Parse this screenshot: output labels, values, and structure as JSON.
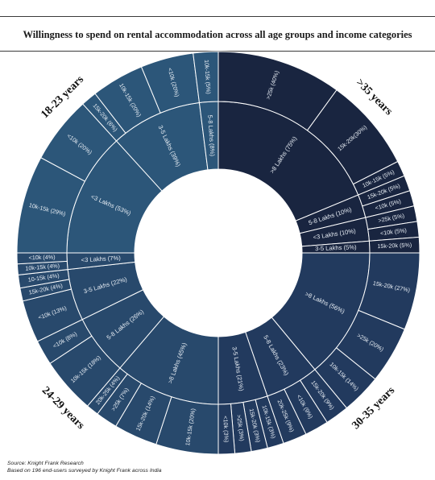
{
  "title": "Willingness to spend on rental accommodation across all age groups and income categories",
  "footer": {
    "source": "Source: Knight Frank Research",
    "note": "Based on 196 end-users surveyed by Knight Frank across India"
  },
  "colors": {
    "18-23": "#2c5679",
    "24-29": "#28496c",
    "30-35": "#223a5e",
    ">35": "#192540",
    "stroke": "#ffffff",
    "text": "#e6ecf3"
  },
  "chart_data": {
    "type": "sunburst",
    "title": "Willingness to spend on rental accommodation across all age groups and income categories",
    "groups": [
      {
        "name": ">35 years",
        "key": ">35",
        "budgets": [
          {
            "label": ">8 Lakhs (75%)",
            "value": 75,
            "income": [
              {
                "label": ">25k (40%)",
                "value": 40
              },
              {
                "label": "15k-20k(30%)",
                "value": 30
              },
              {
                "label": "10k-15k (5%)",
                "value": 5
              }
            ]
          },
          {
            "label": "5-8 Lakhs (10%)",
            "value": 10,
            "income": [
              {
                "label": "15k-20k (5%)",
                "value": 5
              },
              {
                "label": "<10k (5%)",
                "value": 5
              }
            ]
          },
          {
            "label": "<3 Lakhs (10%)",
            "value": 10,
            "income": [
              {
                "label": ">25k (5%)",
                "value": 5
              },
              {
                "label": "<10k (5%)",
                "value": 5
              }
            ]
          },
          {
            "label": "3-5 Lakhs (5%)",
            "value": 5,
            "income": [
              {
                "label": "15k-20k (5%)",
                "value": 5
              }
            ]
          }
        ]
      },
      {
        "name": "30-35 years",
        "key": "30-35",
        "budgets": [
          {
            "label": ">8 Lakhs (56%)",
            "value": 56,
            "income": [
              {
                "label": "15k-20k (27%)",
                "value": 27
              },
              {
                "label": ">25k (20%)",
                "value": 20
              },
              {
                "label": "10k-15k (14%)",
                "value": 14
              }
            ]
          },
          {
            "label": "5-8 Lakhs (23%)",
            "value": 23,
            "income": [
              {
                "label": "15k-20k (9%)",
                "value": 9
              },
              {
                "label": "<10k (9%)",
                "value": 9
              },
              {
                "label": "20k-25k (9%)",
                "value": 9
              }
            ]
          },
          {
            "label": "3-5 Lakhs (21%)",
            "value": 21,
            "income": [
              {
                "label": "10k-15k (3%)",
                "value": 3
              },
              {
                "label": "15k-20k (3%)",
                "value": 3
              },
              {
                "label": ">25k (3%)",
                "value": 3
              },
              {
                "label": "<10k (3%)",
                "value": 3
              }
            ]
          }
        ]
      },
      {
        "name": "24-29 years",
        "key": "24-29",
        "budgets": [
          {
            "label": ">8 Lakhs (45%)",
            "value": 45,
            "income": [
              {
                "label": "10k-15k (20%)",
                "value": 20
              },
              {
                "label": "15k-20k (14%)",
                "value": 14
              },
              {
                "label": ">25k (7%)",
                "value": 7
              },
              {
                "label": "20k-25k (4%)",
                "value": 4
              }
            ]
          },
          {
            "label": "5-8 Lakhs (26%)",
            "value": 26,
            "income": [
              {
                "label": "10k-15k (18%)",
                "value": 18
              },
              {
                "label": "<10k (8%)",
                "value": 8
              }
            ]
          },
          {
            "label": "3-5 Lakhs (22%)",
            "value": 22,
            "income": [
              {
                "label": "<10k (13%)",
                "value": 13
              },
              {
                "label": "15k-20k (4%)",
                "value": 4
              },
              {
                "label": "10-15k (4%)",
                "value": 4
              }
            ]
          },
          {
            "label": "<3 Lakhs (7%)",
            "value": 7,
            "income": [
              {
                "label": "10k-15k (4%)",
                "value": 4
              },
              {
                "label": "<10k (4%)",
                "value": 4
              }
            ]
          }
        ]
      },
      {
        "name": "18-23 years",
        "key": "18-23",
        "budgets": [
          {
            "label": "<3 Lakhs (53%)",
            "value": 53,
            "income": [
              {
                "label": "10k-15k (29%)",
                "value": 29
              },
              {
                "label": "<10k (20%)",
                "value": 20
              }
            ]
          },
          {
            "label": "3-5 Lakhs (39%)",
            "value": 39,
            "income": [
              {
                "label": "15k-20k (6%)",
                "value": 6
              },
              {
                "label": "10k-15k (20%)",
                "value": 20
              },
              {
                "label": "<10k (20%)",
                "value": 20
              }
            ]
          },
          {
            "label": "5-8 Lakhs (8%)",
            "value": 8,
            "income": [
              {
                "label": "10k-15k (5%)",
                "value": 5
              }
            ]
          }
        ]
      }
    ]
  }
}
